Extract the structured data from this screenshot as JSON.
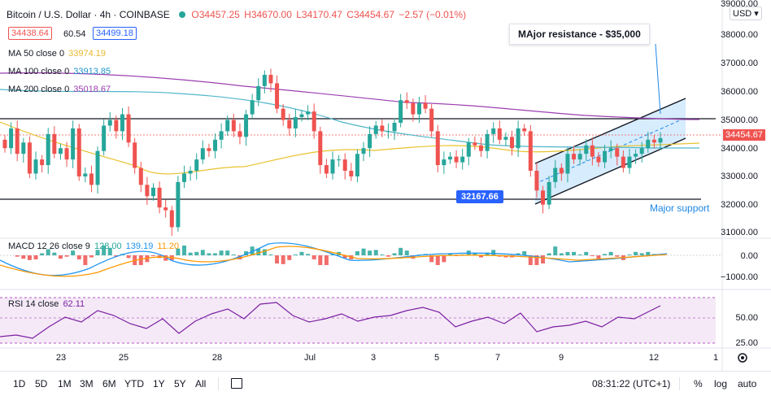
{
  "header": {
    "title": "Bitcoin / U.S. Dollar · 4h · COINBASE",
    "o": "O34457.25",
    "h": "H34670.00",
    "l": "L34170.47",
    "c": "C34454.67",
    "chg": "−2.57 (−0.01%)",
    "sell": "34438.64",
    "spread": "60.54",
    "buy": "34499.18",
    "currency": "USD"
  },
  "indicators": {
    "ma50": {
      "label": "MA 50 close 0",
      "value": "33974.19",
      "color": "#e8c22d"
    },
    "ma100": {
      "label": "MA 100 close 0",
      "value": "33913.85",
      "color": "#4fb6c9"
    },
    "ma200": {
      "label": "MA 200 close 0",
      "value": "35018.67",
      "color": "#9c3fb0"
    },
    "macd": {
      "label": "MACD 12 26 close 9",
      "v1": "128.00",
      "v2": "139.19",
      "v3": "11.20"
    },
    "rsi": {
      "label": "RSI 14 close",
      "value": "62.11"
    }
  },
  "annotations": {
    "resistance": "MAjor resistance - $35,000",
    "support": "Major support",
    "support_price": "32167.66",
    "last_price": "34454.67"
  },
  "price_axis": [
    "39000.00",
    "38000.00",
    "37000.00",
    "36000.00",
    "35000.00",
    "34000.00",
    "33000.00",
    "32000.00",
    "31000.00"
  ],
  "macd_axis": [
    "0.00",
    "−1000.00"
  ],
  "rsi_axis": [
    "50.00",
    "25.00"
  ],
  "time_axis": [
    "23",
    "25",
    "28",
    "Jul",
    "3",
    "5",
    "7",
    "9",
    "12",
    "1"
  ],
  "timeframes": [
    "1D",
    "5D",
    "1M",
    "3M",
    "6M",
    "YTD",
    "1Y",
    "5Y",
    "All"
  ],
  "bottom_right": {
    "time": "08:31:22 (UTC+1)",
    "percent": "%",
    "log": "log",
    "auto": "auto"
  },
  "colors": {
    "up": "#26a69a",
    "down": "#ef5350",
    "channel": "#1e88e5",
    "accent": "#2962ff"
  },
  "chart_data": {
    "type": "candlestick",
    "title": "Bitcoin / U.S. Dollar · 4h · COINBASE",
    "ylim": [
      31000,
      39000
    ],
    "resistance_level": 35000,
    "support_level": 32167.66,
    "close": [
      34100,
      34800,
      33900,
      34300,
      33200,
      33700,
      33500,
      34600,
      33900,
      34100,
      33700,
      34800,
      33100,
      33200,
      32800,
      34000,
      34900,
      35100,
      34700,
      35300,
      34300,
      33400,
      32800,
      32400,
      32700,
      32000,
      31900,
      31300,
      32900,
      33200,
      33300,
      33700,
      34100,
      34000,
      34400,
      34700,
      35100,
      34700,
      34500,
      35300,
      35800,
      36300,
      36700,
      36400,
      35500,
      35100,
      34800,
      35200,
      35300,
      35400,
      34700,
      33500,
      33200,
      33700,
      33700,
      33300,
      33100,
      33900,
      34100,
      34600,
      34900,
      34700,
      34700,
      35000,
      35800,
      35700,
      35300,
      35700,
      35500,
      34700,
      33500,
      33700,
      33800,
      33600,
      33800,
      34300,
      34200,
      34000,
      34600,
      34800,
      34400,
      34500,
      34100,
      34800,
      34700,
      33300,
      32600,
      32100,
      32900,
      33400,
      33200,
      33900,
      33700,
      33900,
      34200,
      33800,
      33600,
      34000,
      34100,
      33800,
      33400,
      33800,
      33900,
      34100,
      34400,
      34300,
      34454.67
    ]
  }
}
